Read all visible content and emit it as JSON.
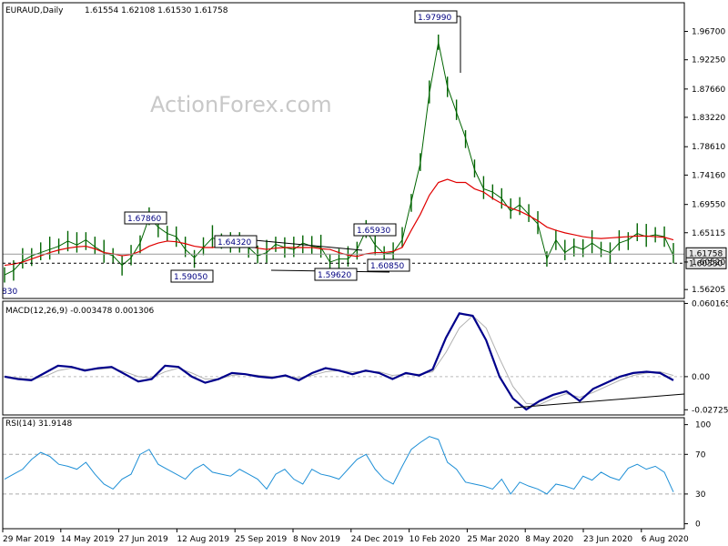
{
  "header": {
    "symbol": "EURAUD,Daily",
    "ohlc": "1.61554 1.62108 1.61530 1.61758"
  },
  "watermark": "ActionForex.com",
  "colors": {
    "ma": "#e00000",
    "macd": "#00008b",
    "signal": "#b0b0b0",
    "candle": "#006400",
    "rsi": "#1e8fd6",
    "label_text": "#000080"
  },
  "chart_data": [
    {
      "type": "line",
      "panel": "price",
      "title": "EURAUD,Daily",
      "ylim": [
        1.548,
        2.012
      ],
      "y_ticks": [
        "1.96700",
        "1.92250",
        "1.87660",
        "1.83220",
        "1.78610",
        "1.74160",
        "1.69550",
        "1.65115",
        "1.60520",
        "1.56205"
      ],
      "x_ticks": [
        "29 Mar 2019",
        "14 May 2019",
        "27 Jun 2019",
        "12 Aug 2019",
        "25 Sep 2019",
        "8 Nov 2019",
        "24 Dec 2019",
        "10 Feb 2020",
        "25 Mar 2020",
        "8 May 2020",
        "23 Jun 2020",
        "6 Aug 2020"
      ],
      "price_close": [
        1.585,
        1.592,
        1.607,
        1.615,
        1.62,
        1.625,
        1.63,
        1.638,
        1.632,
        1.64,
        1.629,
        1.62,
        1.615,
        1.6,
        1.612,
        1.635,
        1.675,
        1.66,
        1.65,
        1.645,
        1.625,
        1.612,
        1.628,
        1.643,
        1.638,
        1.636,
        1.632,
        1.628,
        1.615,
        1.62,
        1.633,
        1.628,
        1.625,
        1.635,
        1.63,
        1.628,
        1.605,
        1.61,
        1.61,
        1.625,
        1.655,
        1.632,
        1.618,
        1.62,
        1.64,
        1.7,
        1.76,
        1.87,
        1.95,
        1.88,
        1.84,
        1.8,
        1.75,
        1.72,
        1.715,
        1.705,
        1.685,
        1.695,
        1.68,
        1.665,
        1.61,
        1.64,
        1.62,
        1.63,
        1.625,
        1.635,
        1.625,
        1.62,
        1.635,
        1.64,
        1.65,
        1.645,
        1.648,
        1.645,
        1.615
      ],
      "ma_line": [
        1.6,
        1.602,
        1.605,
        1.61,
        1.615,
        1.62,
        1.624,
        1.627,
        1.629,
        1.63,
        1.626,
        1.62,
        1.618,
        1.615,
        1.617,
        1.622,
        1.63,
        1.635,
        1.638,
        1.637,
        1.634,
        1.63,
        1.628,
        1.628,
        1.63,
        1.632,
        1.631,
        1.63,
        1.627,
        1.625,
        1.627,
        1.628,
        1.628,
        1.628,
        1.628,
        1.626,
        1.625,
        1.62,
        1.616,
        1.614,
        1.618,
        1.62,
        1.62,
        1.622,
        1.628,
        1.655,
        1.68,
        1.71,
        1.73,
        1.735,
        1.73,
        1.73,
        1.72,
        1.715,
        1.705,
        1.697,
        1.69,
        1.685,
        1.678,
        1.67,
        1.66,
        1.655,
        1.651,
        1.648,
        1.645,
        1.643,
        1.642,
        1.643,
        1.644,
        1.645,
        1.646,
        1.646,
        1.645,
        1.644,
        1.64
      ],
      "hline_levels": [
        1.61758,
        1.6033
      ],
      "price_labels": [
        "1.97990",
        "1.67860",
        "1.64320",
        "1.59050",
        "1.65930",
        "1.59620",
        "1.60850",
        "1.60330",
        "1.61758"
      ],
      "bottom_left_label": "830"
    },
    {
      "type": "line",
      "panel": "macd",
      "title": "MACD(12,26,9) -0.003478 0.001306",
      "ylim": [
        -0.0315,
        0.062
      ],
      "y_ticks": [
        "0.060165",
        "0.00",
        "-0.02725"
      ],
      "macd": [
        0.0,
        -0.002,
        -0.003,
        0.003,
        0.009,
        0.008,
        0.005,
        0.007,
        0.008,
        0.002,
        -0.004,
        -0.002,
        0.009,
        0.008,
        0.0,
        -0.005,
        -0.002,
        0.003,
        0.002,
        0.0,
        -0.001,
        0.001,
        -0.003,
        0.003,
        0.007,
        0.005,
        0.002,
        0.005,
        0.003,
        -0.002,
        0.003,
        0.001,
        0.006,
        0.032,
        0.052,
        0.05,
        0.03,
        0.0,
        -0.018,
        -0.027,
        -0.02,
        -0.015,
        -0.012,
        -0.02,
        -0.01,
        -0.005,
        0.0,
        0.003,
        0.004,
        0.003,
        -0.003
      ],
      "signal": [
        0.0,
        -0.001,
        -0.002,
        0.0,
        0.005,
        0.007,
        0.006,
        0.006,
        0.007,
        0.004,
        0.0,
        -0.001,
        0.004,
        0.007,
        0.003,
        -0.002,
        -0.002,
        0.001,
        0.002,
        0.001,
        0.0,
        0.0,
        -0.001,
        0.001,
        0.004,
        0.005,
        0.004,
        0.004,
        0.004,
        0.001,
        0.002,
        0.002,
        0.004,
        0.02,
        0.04,
        0.05,
        0.04,
        0.015,
        -0.008,
        -0.022,
        -0.023,
        -0.018,
        -0.014,
        -0.017,
        -0.013,
        -0.008,
        -0.003,
        0.001,
        0.003,
        0.004,
        0.001
      ]
    },
    {
      "type": "line",
      "panel": "rsi",
      "title": "RSI(14) 31.9148",
      "ylim": [
        -5,
        107
      ],
      "y_ticks": [
        "100",
        "70",
        "30",
        "0"
      ],
      "levels": [
        70,
        30
      ],
      "rsi": [
        45,
        50,
        55,
        65,
        72,
        68,
        60,
        58,
        55,
        62,
        50,
        40,
        35,
        45,
        50,
        70,
        75,
        60,
        55,
        50,
        45,
        55,
        60,
        52,
        50,
        48,
        55,
        50,
        45,
        35,
        50,
        55,
        45,
        40,
        55,
        50,
        48,
        45,
        55,
        65,
        70,
        55,
        45,
        40,
        58,
        75,
        82,
        88,
        85,
        62,
        55,
        42,
        40,
        38,
        35,
        45,
        30,
        42,
        38,
        35,
        30,
        40,
        38,
        35,
        48,
        44,
        52,
        47,
        44,
        56,
        60,
        55,
        58,
        52,
        32
      ]
    }
  ]
}
